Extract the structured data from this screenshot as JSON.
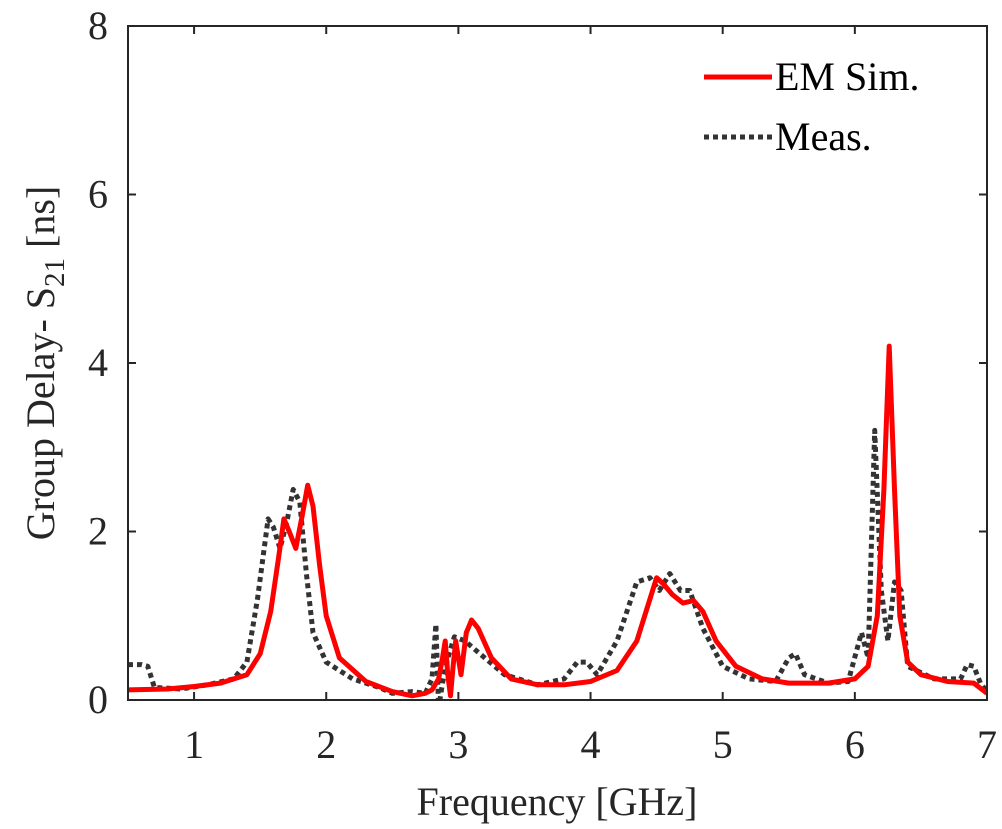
{
  "chart_data": {
    "type": "line",
    "xlabel": "Frequency [GHz]",
    "ylabel": {
      "prefix": "Group Delay- S",
      "subscript": "21",
      "suffix": " [ns]"
    },
    "xlim": [
      0.5,
      7
    ],
    "ylim": [
      0,
      8
    ],
    "xticks": [
      1,
      2,
      3,
      4,
      5,
      6,
      7
    ],
    "yticks": [
      0,
      2,
      4,
      6,
      8
    ],
    "grid": false,
    "legend_position": "top-right",
    "series": [
      {
        "name": "EM Sim.",
        "color": "#ff0000",
        "style": "solid",
        "points": [
          [
            0.5,
            0.12
          ],
          [
            0.8,
            0.13
          ],
          [
            1.0,
            0.16
          ],
          [
            1.2,
            0.2
          ],
          [
            1.4,
            0.3
          ],
          [
            1.5,
            0.55
          ],
          [
            1.58,
            1.05
          ],
          [
            1.64,
            1.7
          ],
          [
            1.68,
            2.15
          ],
          [
            1.72,
            2.0
          ],
          [
            1.77,
            1.8
          ],
          [
            1.82,
            2.2
          ],
          [
            1.86,
            2.55
          ],
          [
            1.9,
            2.3
          ],
          [
            1.95,
            1.6
          ],
          [
            2.0,
            1.0
          ],
          [
            2.1,
            0.5
          ],
          [
            2.3,
            0.22
          ],
          [
            2.5,
            0.1
          ],
          [
            2.65,
            0.05
          ],
          [
            2.75,
            0.08
          ],
          [
            2.8,
            0.12
          ],
          [
            2.85,
            0.25
          ],
          [
            2.88,
            0.5
          ],
          [
            2.9,
            0.7
          ],
          [
            2.92,
            0.3
          ],
          [
            2.94,
            0.05
          ],
          [
            2.96,
            0.4
          ],
          [
            2.98,
            0.7
          ],
          [
            3.02,
            0.3
          ],
          [
            3.06,
            0.8
          ],
          [
            3.1,
            0.95
          ],
          [
            3.15,
            0.85
          ],
          [
            3.25,
            0.5
          ],
          [
            3.4,
            0.25
          ],
          [
            3.6,
            0.18
          ],
          [
            3.8,
            0.18
          ],
          [
            4.0,
            0.22
          ],
          [
            4.2,
            0.35
          ],
          [
            4.35,
            0.7
          ],
          [
            4.45,
            1.2
          ],
          [
            4.5,
            1.45
          ],
          [
            4.55,
            1.38
          ],
          [
            4.62,
            1.25
          ],
          [
            4.7,
            1.15
          ],
          [
            4.78,
            1.18
          ],
          [
            4.85,
            1.05
          ],
          [
            4.95,
            0.7
          ],
          [
            5.1,
            0.4
          ],
          [
            5.3,
            0.25
          ],
          [
            5.5,
            0.2
          ],
          [
            5.8,
            0.2
          ],
          [
            6.0,
            0.25
          ],
          [
            6.1,
            0.4
          ],
          [
            6.17,
            1.0
          ],
          [
            6.22,
            2.5
          ],
          [
            6.26,
            4.2
          ],
          [
            6.3,
            2.5
          ],
          [
            6.34,
            1.0
          ],
          [
            6.4,
            0.45
          ],
          [
            6.5,
            0.3
          ],
          [
            6.7,
            0.22
          ],
          [
            6.9,
            0.2
          ],
          [
            7.0,
            0.08
          ]
        ]
      },
      {
        "name": "Meas.",
        "color": "#333333",
        "style": "dotted",
        "points": [
          [
            0.5,
            0.42
          ],
          [
            0.6,
            0.42
          ],
          [
            0.65,
            0.4
          ],
          [
            0.7,
            0.15
          ],
          [
            0.9,
            0.13
          ],
          [
            1.1,
            0.18
          ],
          [
            1.3,
            0.25
          ],
          [
            1.4,
            0.45
          ],
          [
            1.48,
            1.2
          ],
          [
            1.56,
            2.15
          ],
          [
            1.6,
            2.05
          ],
          [
            1.65,
            1.8
          ],
          [
            1.7,
            2.1
          ],
          [
            1.75,
            2.5
          ],
          [
            1.8,
            2.35
          ],
          [
            1.85,
            1.5
          ],
          [
            1.9,
            0.8
          ],
          [
            2.0,
            0.45
          ],
          [
            2.2,
            0.25
          ],
          [
            2.4,
            0.15
          ],
          [
            2.5,
            0.08
          ],
          [
            2.65,
            0.1
          ],
          [
            2.75,
            0.08
          ],
          [
            2.8,
            0.25
          ],
          [
            2.83,
            0.9
          ],
          [
            2.85,
            -0.1
          ],
          [
            2.88,
            0.2
          ],
          [
            2.92,
            0.5
          ],
          [
            2.97,
            0.75
          ],
          [
            3.05,
            0.7
          ],
          [
            3.2,
            0.5
          ],
          [
            3.35,
            0.3
          ],
          [
            3.6,
            0.18
          ],
          [
            3.8,
            0.25
          ],
          [
            3.9,
            0.45
          ],
          [
            3.97,
            0.45
          ],
          [
            4.05,
            0.3
          ],
          [
            4.2,
            0.7
          ],
          [
            4.35,
            1.4
          ],
          [
            4.45,
            1.45
          ],
          [
            4.52,
            1.3
          ],
          [
            4.6,
            1.5
          ],
          [
            4.68,
            1.3
          ],
          [
            4.75,
            1.3
          ],
          [
            4.85,
            0.85
          ],
          [
            5.0,
            0.4
          ],
          [
            5.2,
            0.25
          ],
          [
            5.4,
            0.22
          ],
          [
            5.5,
            0.5
          ],
          [
            5.55,
            0.55
          ],
          [
            5.62,
            0.3
          ],
          [
            5.8,
            0.2
          ],
          [
            5.95,
            0.22
          ],
          [
            6.05,
            0.8
          ],
          [
            6.1,
            0.5
          ],
          [
            6.15,
            3.2
          ],
          [
            6.2,
            1.3
          ],
          [
            6.25,
            0.7
          ],
          [
            6.3,
            1.4
          ],
          [
            6.35,
            1.3
          ],
          [
            6.4,
            0.4
          ],
          [
            6.6,
            0.25
          ],
          [
            6.8,
            0.25
          ],
          [
            6.85,
            0.42
          ],
          [
            6.9,
            0.4
          ],
          [
            6.95,
            0.2
          ],
          [
            7.0,
            0.1
          ]
        ]
      }
    ]
  }
}
